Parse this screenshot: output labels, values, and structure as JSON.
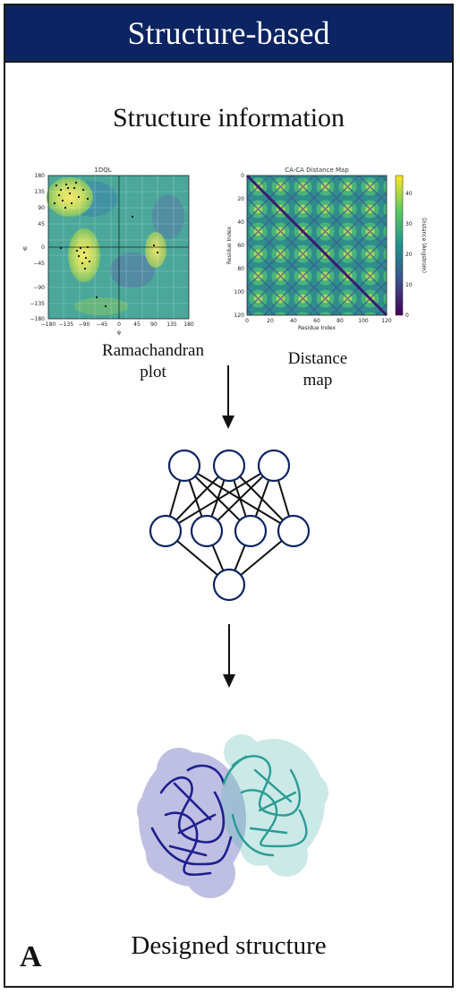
{
  "header": {
    "title": "Structure-based"
  },
  "section": {
    "title": "Structure information"
  },
  "plots": {
    "ramachandran": {
      "title": "1DQL",
      "xlabel": "φ",
      "ylabel": "ψ",
      "xticks": [
        "−180",
        "−135",
        "−90",
        "−45",
        "0",
        "45",
        "90",
        "135",
        "180"
      ],
      "yticks": [
        "180",
        "135",
        "90",
        "45",
        "0",
        "−45",
        "−90",
        "−135",
        "−180"
      ],
      "caption_line1": "Ramachandran",
      "caption_line2": "plot"
    },
    "distance": {
      "title": "CA-CA Distance Map",
      "xlabel": "Residue Index",
      "ylabel": "Residue Index",
      "xticks": [
        "0",
        "20",
        "40",
        "60",
        "80",
        "100",
        "120"
      ],
      "yticks": [
        "0",
        "20",
        "40",
        "60",
        "80",
        "100",
        "120"
      ],
      "colorbar_label": "Distance (Angstrom)",
      "colorbar_ticks": [
        "40",
        "30",
        "20",
        "10",
        "0"
      ],
      "caption_line1": "Distance",
      "caption_line2": "map"
    }
  },
  "footer": {
    "title": "Designed structure",
    "panel_letter": "A"
  },
  "colors": {
    "header_bg": "#0c2461",
    "chain_a": "#1f1f8f",
    "chain_b": "#2a9c94"
  }
}
